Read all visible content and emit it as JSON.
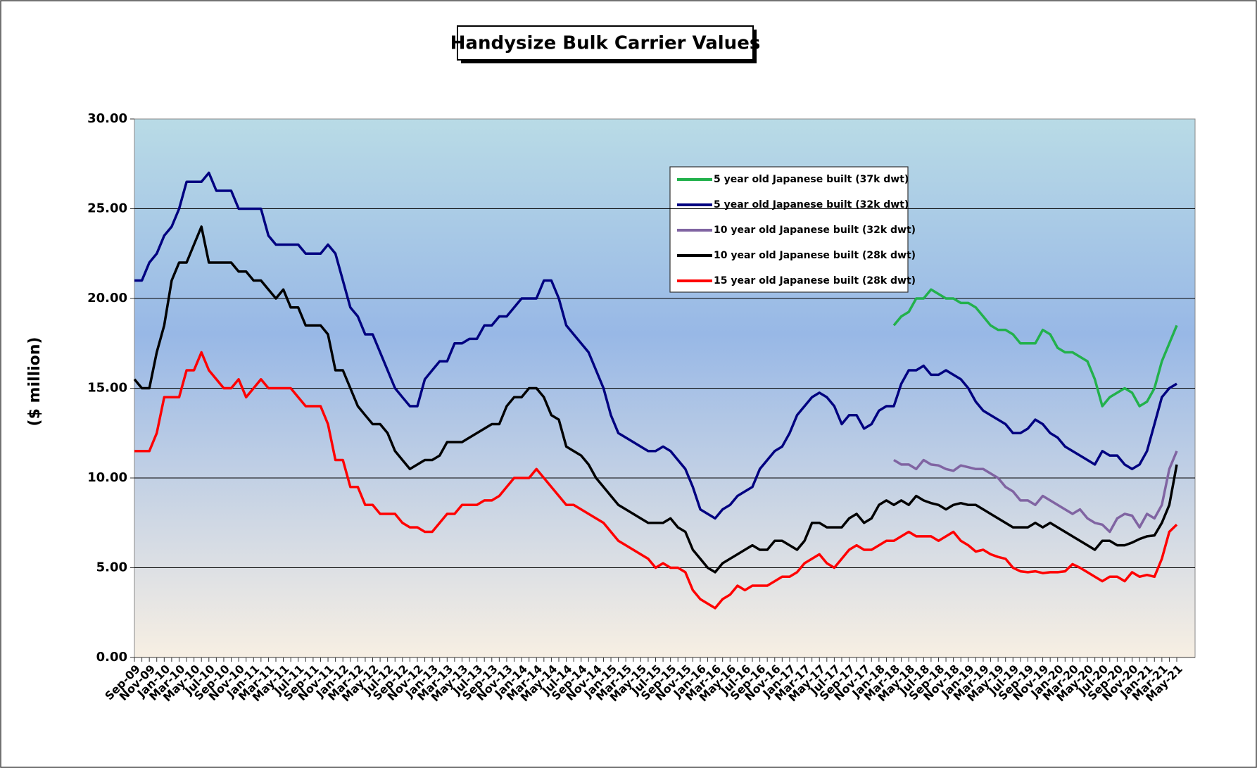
{
  "chart_data": {
    "type": "line",
    "title": "Handysize Bulk Carrier Values",
    "y_label": "($ million)",
    "categories": [
      "Sep-09",
      null,
      "Nov-09",
      null,
      "Jan-10",
      null,
      "Mar-10",
      null,
      "May-10",
      null,
      "Jul-10",
      null,
      "Sep-10",
      null,
      "Nov-10",
      null,
      "Jan-11",
      null,
      "Mar-11",
      null,
      "May-11",
      null,
      "Jul-11",
      null,
      "Sep-11",
      null,
      "Nov-11",
      null,
      "Jan-12",
      null,
      "Mar-12",
      null,
      "May-12",
      null,
      "Jul-12",
      null,
      "Sep-12",
      null,
      "Nov-12",
      null,
      "Jan-13",
      null,
      "Mar-13",
      null,
      "May-13",
      null,
      "Jul-13",
      null,
      "Sep-13",
      null,
      "Nov-13",
      null,
      "Jan-14",
      null,
      "Mar-14",
      null,
      "May-14",
      null,
      "Jul-14",
      null,
      "Sep-14",
      null,
      "Nov-14",
      null,
      "Jan-15",
      null,
      "Mar-15",
      null,
      "May-15",
      null,
      "Jul-15",
      null,
      "Sep-15",
      null,
      "Nov-15",
      null,
      "Jan-16",
      null,
      "Mar-16",
      null,
      "May-16",
      null,
      "Jul-16",
      null,
      "Sep-16",
      null,
      "Nov-16",
      null,
      "Jan-17",
      null,
      "Mar-17",
      null,
      "May-17",
      null,
      "Jul-17",
      null,
      "Sep-17",
      null,
      "Nov-17",
      null,
      "Jan-18",
      null,
      "Mar-18",
      null,
      "May-18",
      null,
      "Jul-18",
      null,
      "Sep-18",
      null,
      "Nov-18",
      null,
      "Jan-19",
      null,
      "Mar-19",
      null,
      "May-19",
      null,
      "Jul-19",
      null,
      "Sep-19",
      null,
      "Nov-19",
      null,
      "Jan-20",
      null,
      "Mar-20",
      null,
      "May-20",
      null,
      "Jul-20",
      null,
      "Sep-20",
      null,
      "Nov-20",
      null,
      "Jan-21",
      null,
      "Mar-21",
      null,
      "May-21"
    ],
    "series": [
      {
        "name": "5 year old Japanese built (37k dwt)",
        "color": "#22b14c",
        "values": [
          null,
          null,
          null,
          null,
          null,
          null,
          null,
          null,
          null,
          null,
          null,
          null,
          null,
          null,
          null,
          null,
          null,
          null,
          null,
          null,
          null,
          null,
          null,
          null,
          null,
          null,
          null,
          null,
          null,
          null,
          null,
          null,
          null,
          null,
          null,
          null,
          null,
          null,
          null,
          null,
          null,
          null,
          null,
          null,
          null,
          null,
          null,
          null,
          null,
          null,
          null,
          null,
          null,
          null,
          null,
          null,
          null,
          null,
          null,
          null,
          null,
          null,
          null,
          null,
          null,
          null,
          null,
          null,
          null,
          null,
          null,
          null,
          null,
          null,
          null,
          null,
          null,
          null,
          null,
          null,
          null,
          null,
          null,
          null,
          null,
          null,
          null,
          null,
          null,
          null,
          null,
          null,
          null,
          null,
          null,
          null,
          null,
          null,
          null,
          null,
          null,
          null,
          18.5,
          19,
          19.25,
          20,
          20,
          20.5,
          20.25,
          20,
          20,
          19.75,
          19.75,
          19.5,
          19,
          18.5,
          18.25,
          18.25,
          18,
          17.5,
          17.5,
          17.5,
          18.25,
          18,
          17.25,
          17,
          17,
          16.75,
          16.5,
          15.5,
          14,
          14.5,
          14.75,
          15,
          14.75,
          14,
          14.25,
          15,
          16.5,
          17.5,
          18.5
        ]
      },
      {
        "name": "5 year old Japanese built (32k dwt)",
        "color": "#000080",
        "values": [
          21,
          21,
          22,
          22.5,
          23.5,
          24,
          25,
          26.5,
          26.5,
          26.5,
          27,
          26,
          26,
          26,
          25,
          25,
          25,
          25,
          23.5,
          23,
          23,
          23,
          23,
          22.5,
          22.5,
          22.5,
          23,
          22.5,
          21,
          19.5,
          19,
          18,
          18,
          17,
          16,
          15,
          14.5,
          14,
          14,
          15.5,
          16,
          16.5,
          16.5,
          17.5,
          17.5,
          17.75,
          17.75,
          18.5,
          18.5,
          19,
          19,
          19.5,
          20,
          20,
          20,
          21,
          21,
          20,
          18.5,
          18,
          17.5,
          17,
          16,
          15,
          13.5,
          12.5,
          12.25,
          12,
          11.75,
          11.5,
          11.5,
          11.75,
          11.5,
          11,
          10.5,
          9.5,
          8.25,
          8,
          7.75,
          8.25,
          8.5,
          9,
          9.25,
          9.5,
          10.5,
          11,
          11.5,
          11.75,
          12.5,
          13.5,
          14,
          14.5,
          14.75,
          14.5,
          14,
          13,
          13.5,
          13.5,
          12.75,
          13,
          13.75,
          14,
          14,
          15.25,
          16,
          16,
          16.25,
          15.75,
          15.75,
          16,
          15.75,
          15.5,
          15,
          14.25,
          13.75,
          13.5,
          13.25,
          13,
          12.5,
          12.5,
          12.75,
          13.25,
          13,
          12.5,
          12.25,
          11.75,
          11.5,
          11.25,
          11,
          10.75,
          11.5,
          11.25,
          11.25,
          10.75,
          10.5,
          10.75,
          11.5,
          13,
          14.5,
          15,
          15.25
        ]
      },
      {
        "name": "10 year old  Japanese built (32k dwt)",
        "color": "#8064a2",
        "values": [
          null,
          null,
          null,
          null,
          null,
          null,
          null,
          null,
          null,
          null,
          null,
          null,
          null,
          null,
          null,
          null,
          null,
          null,
          null,
          null,
          null,
          null,
          null,
          null,
          null,
          null,
          null,
          null,
          null,
          null,
          null,
          null,
          null,
          null,
          null,
          null,
          null,
          null,
          null,
          null,
          null,
          null,
          null,
          null,
          null,
          null,
          null,
          null,
          null,
          null,
          null,
          null,
          null,
          null,
          null,
          null,
          null,
          null,
          null,
          null,
          null,
          null,
          null,
          null,
          null,
          null,
          null,
          null,
          null,
          null,
          null,
          null,
          null,
          null,
          null,
          null,
          null,
          null,
          null,
          null,
          null,
          null,
          null,
          null,
          null,
          null,
          null,
          null,
          null,
          null,
          null,
          null,
          null,
          null,
          null,
          null,
          null,
          null,
          null,
          null,
          null,
          null,
          11,
          10.75,
          10.75,
          10.5,
          11,
          10.75,
          10.7,
          10.5,
          10.4,
          10.7,
          10.6,
          10.5,
          10.5,
          10.25,
          10,
          9.5,
          9.25,
          8.75,
          8.75,
          8.5,
          9,
          8.75,
          8.5,
          8.25,
          8,
          8.25,
          7.75,
          7.5,
          7.4,
          7,
          7.75,
          8,
          7.9,
          7.25,
          8,
          7.75,
          8.5,
          10.5,
          11.5
        ]
      },
      {
        "name": "10 year old  Japanese built (28k dwt)",
        "color": "#000000",
        "values": [
          15.5,
          15,
          15,
          17,
          18.5,
          21,
          22,
          22,
          23,
          24,
          22,
          22,
          22,
          22,
          21.5,
          21.5,
          21,
          21,
          20.5,
          20,
          20.5,
          19.5,
          19.5,
          18.5,
          18.5,
          18.5,
          18,
          16,
          16,
          15,
          14,
          13.5,
          13,
          13,
          12.5,
          11.5,
          11,
          10.5,
          10.75,
          11,
          11,
          11.25,
          12,
          12,
          12,
          12.25,
          12.5,
          12.75,
          13,
          13,
          14,
          14.5,
          14.5,
          15,
          15,
          14.5,
          13.5,
          13.25,
          11.75,
          11.5,
          11.25,
          10.75,
          10,
          9.5,
          9,
          8.5,
          8.25,
          8,
          7.75,
          7.5,
          7.5,
          7.5,
          7.75,
          7.25,
          7,
          6,
          5.5,
          5,
          4.75,
          5.25,
          5.5,
          5.75,
          6,
          6.25,
          6,
          6,
          6.5,
          6.5,
          6.25,
          6,
          6.5,
          7.5,
          7.5,
          7.25,
          7.25,
          7.25,
          7.75,
          8,
          7.5,
          7.75,
          8.5,
          8.75,
          8.5,
          8.75,
          8.5,
          9,
          8.75,
          8.6,
          8.5,
          8.25,
          8.5,
          8.6,
          8.5,
          8.5,
          8.25,
          8,
          7.75,
          7.5,
          7.25,
          7.25,
          7.25,
          7.5,
          7.25,
          7.5,
          7.25,
          7,
          6.75,
          6.5,
          6.25,
          6,
          6.5,
          6.5,
          6.25,
          6.25,
          6.4,
          6.6,
          6.75,
          6.8,
          7.5,
          8.5,
          10.75
        ]
      },
      {
        "name": "15 year old Japanese built (28k dwt)",
        "color": "#ff0000",
        "values": [
          11.5,
          11.5,
          11.5,
          12.5,
          14.5,
          14.5,
          14.5,
          16,
          16,
          17,
          16,
          15.5,
          15,
          15,
          15.5,
          14.5,
          15,
          15.5,
          15,
          15,
          15,
          15,
          14.5,
          14,
          14,
          14,
          13,
          11,
          11,
          9.5,
          9.5,
          8.5,
          8.5,
          8,
          8,
          8,
          7.5,
          7.25,
          7.25,
          7,
          7,
          7.5,
          8,
          8,
          8.5,
          8.5,
          8.5,
          8.75,
          8.75,
          9,
          9.5,
          10,
          10,
          10,
          10.5,
          10,
          9.5,
          9,
          8.5,
          8.5,
          8.25,
          8,
          7.75,
          7.5,
          7,
          6.5,
          6.25,
          6,
          5.75,
          5.5,
          5,
          5.25,
          5,
          5,
          4.75,
          3.75,
          3.25,
          3,
          2.75,
          3.25,
          3.5,
          4,
          3.75,
          4,
          4,
          4,
          4.25,
          4.5,
          4.5,
          4.75,
          5.25,
          5.5,
          5.75,
          5.25,
          5,
          5.5,
          6,
          6.25,
          6,
          6,
          6.25,
          6.5,
          6.5,
          6.75,
          7,
          6.75,
          6.75,
          6.75,
          6.5,
          6.75,
          7,
          6.5,
          6.25,
          5.9,
          6,
          5.75,
          5.6,
          5.5,
          5,
          4.8,
          4.75,
          4.8,
          4.7,
          4.75,
          4.75,
          4.8,
          5.2,
          5,
          4.75,
          4.5,
          4.25,
          4.5,
          4.5,
          4.25,
          4.75,
          4.5,
          4.6,
          4.5,
          5.5,
          7,
          7.4
        ]
      }
    ],
    "ylim": [
      0,
      30
    ],
    "yticks": [
      {
        "value": 0,
        "label": "0.00"
      },
      {
        "value": 5,
        "label": "5.00"
      },
      {
        "value": 10,
        "label": "10.00"
      },
      {
        "value": 15,
        "label": "15.00"
      },
      {
        "value": 20,
        "label": "20.00"
      },
      {
        "value": 25,
        "label": "25.00"
      },
      {
        "value": 30,
        "label": "30.00"
      }
    ],
    "grid": true,
    "legend": "top"
  }
}
